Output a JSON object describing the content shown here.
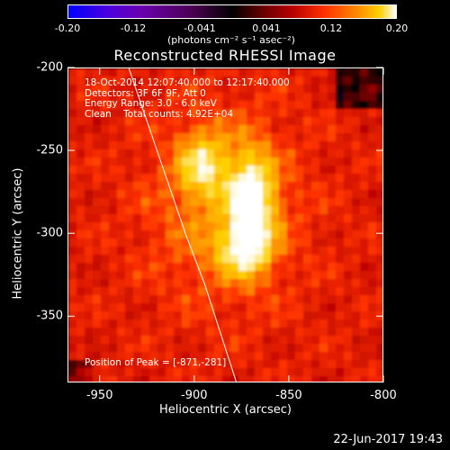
{
  "colorbar": {
    "ticks": [
      "-0.20",
      "-0.12",
      "-0.041",
      "0.041",
      "0.12",
      "0.20"
    ],
    "units": "(photons cm⁻² s⁻¹ asec⁻²)",
    "range": [
      -0.2,
      0.2
    ],
    "colors": [
      "#0000ff",
      "#6a00b0",
      "#000000",
      "#b40000",
      "#ff8a00",
      "#ffffff"
    ]
  },
  "title": "Reconstructed RHESSI Image",
  "info": {
    "line1": "18-Oct-2014 12:07:40.000 to 12:17:40.000",
    "line2": "Detectors: 3F 6F 9F, Att 0",
    "line3": "Energy Range: 3.0 - 6.0 keV",
    "line4": "Clean    Total counts: 4.92E+04"
  },
  "peak": "Position of Peak = [-871,-281]",
  "timestamp": "22-Jun-2017 19:43",
  "chart_data": {
    "type": "heatmap",
    "title": "Reconstructed RHESSI Image",
    "xlabel": "Heliocentric X (arcsec)",
    "ylabel": "Heliocentric Y (arcsec)",
    "xlim": [
      -967,
      -800
    ],
    "ylim": [
      -390,
      -200
    ],
    "x_ticks": [
      -950,
      -900,
      -850,
      -800
    ],
    "y_ticks": [
      -200,
      -250,
      -300,
      -350
    ],
    "x_tick_labels": [
      "-950",
      "-900",
      "-850",
      "-800"
    ],
    "y_tick_labels": [
      "-200",
      "-250",
      "-300",
      "-350"
    ],
    "sources": [
      {
        "x": -871,
        "y": -281,
        "peak": 0.2
      },
      {
        "x": -896,
        "y": -262,
        "peak": 0.16
      },
      {
        "x": -878,
        "y": -310,
        "peak": 0.15
      }
    ],
    "limb_curve": [
      [
        -935,
        -200
      ],
      [
        -920,
        -250
      ],
      [
        -905,
        -300
      ],
      [
        -895,
        -330
      ],
      [
        -878,
        -390
      ]
    ],
    "peak_position": [
      -871,
      -281
    ]
  }
}
